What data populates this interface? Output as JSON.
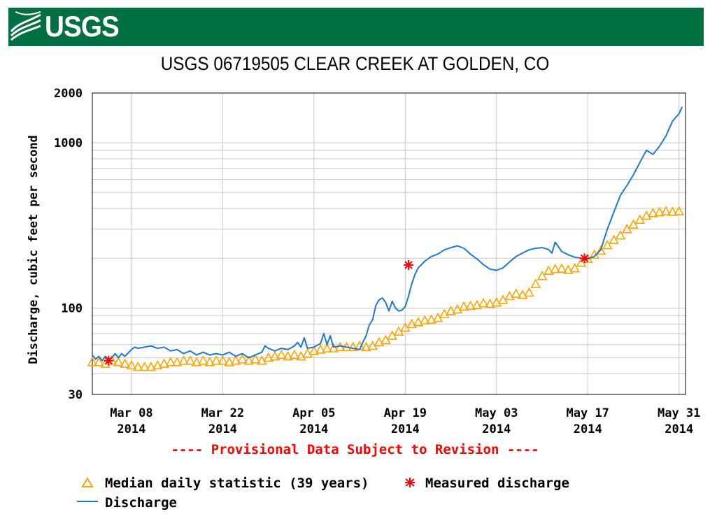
{
  "header": {
    "logo_text": "USGS",
    "logo_icon": "usgs-wave-logo-icon",
    "brand_color": "#006f41"
  },
  "chart_data": {
    "type": "line",
    "title": "USGS 06719505 CLEAR CREEK AT GOLDEN, CO",
    "xlabel": "",
    "ylabel": "Discharge, cubic feet per second",
    "y_scale": "log",
    "ylim": [
      30,
      2000
    ],
    "y_ticks": [
      "2000",
      "1000",
      "100",
      "30"
    ],
    "x_range": [
      "2014-03-02",
      "2014-05-31"
    ],
    "x_ticks": [
      {
        "day": 6,
        "line1": "Mar 08",
        "line2": "2014"
      },
      {
        "day": 20,
        "line1": "Mar 22",
        "line2": "2014"
      },
      {
        "day": 34,
        "line1": "Apr 05",
        "line2": "2014"
      },
      {
        "day": 48,
        "line1": "Apr 19",
        "line2": "2014"
      },
      {
        "day": 62,
        "line1": "May 03",
        "line2": "2014"
      },
      {
        "day": 76,
        "line1": "May 17",
        "line2": "2014"
      },
      {
        "day": 90,
        "line1": "May 31",
        "line2": "2014"
      }
    ],
    "note": "---- Provisional Data Subject to Revision ----",
    "colors": {
      "discharge": "#1f78d1",
      "median": "#ffa500",
      "measured": "#ff0000",
      "grid": "#c8c8c8"
    },
    "series": [
      {
        "name": "Discharge",
        "style": "line",
        "points": [
          [
            0,
            52
          ],
          [
            0.5,
            49
          ],
          [
            1,
            51
          ],
          [
            1.5,
            48
          ],
          [
            2,
            51
          ],
          [
            2.5,
            49
          ],
          [
            3,
            50
          ],
          [
            3.5,
            53
          ],
          [
            4,
            50
          ],
          [
            4.5,
            53
          ],
          [
            5,
            51
          ],
          [
            6,
            56
          ],
          [
            6.5,
            58
          ],
          [
            7,
            57
          ],
          [
            8,
            58
          ],
          [
            9,
            59
          ],
          [
            10,
            57
          ],
          [
            11,
            58
          ],
          [
            12,
            55
          ],
          [
            13,
            56
          ],
          [
            14,
            53
          ],
          [
            15,
            55
          ],
          [
            16,
            52
          ],
          [
            17,
            54
          ],
          [
            18,
            52
          ],
          [
            19,
            53
          ],
          [
            20,
            52
          ],
          [
            21,
            54
          ],
          [
            22,
            51
          ],
          [
            23,
            53
          ],
          [
            24,
            50
          ],
          [
            25,
            52
          ],
          [
            26,
            54
          ],
          [
            26.5,
            59
          ],
          [
            27,
            57
          ],
          [
            28,
            55
          ],
          [
            29,
            57
          ],
          [
            30,
            56
          ],
          [
            31,
            59
          ],
          [
            31.5,
            62
          ],
          [
            32,
            58
          ],
          [
            32.5,
            66
          ],
          [
            33,
            57
          ],
          [
            34,
            58
          ],
          [
            35,
            61
          ],
          [
            35.5,
            70
          ],
          [
            36,
            60
          ],
          [
            36.5,
            68
          ],
          [
            37,
            58
          ],
          [
            38,
            59
          ],
          [
            39,
            58
          ],
          [
            40,
            57
          ],
          [
            41,
            56
          ],
          [
            41.5,
            62
          ],
          [
            42,
            68
          ],
          [
            42.5,
            79
          ],
          [
            43,
            85
          ],
          [
            43.5,
            104
          ],
          [
            44,
            112
          ],
          [
            44.5,
            115
          ],
          [
            45,
            108
          ],
          [
            45.5,
            96
          ],
          [
            46,
            110
          ],
          [
            46.5,
            100
          ],
          [
            47,
            96
          ],
          [
            47.5,
            97
          ],
          [
            48,
            102
          ],
          [
            48.5,
            118
          ],
          [
            49,
            140
          ],
          [
            49.5,
            160
          ],
          [
            50,
            175
          ],
          [
            51,
            192
          ],
          [
            52,
            205
          ],
          [
            53,
            212
          ],
          [
            54,
            225
          ],
          [
            55,
            232
          ],
          [
            56,
            238
          ],
          [
            57,
            230
          ],
          [
            58,
            212
          ],
          [
            59,
            198
          ],
          [
            60,
            183
          ],
          [
            61,
            172
          ],
          [
            62,
            169
          ],
          [
            63,
            175
          ],
          [
            64,
            190
          ],
          [
            65,
            205
          ],
          [
            66,
            215
          ],
          [
            67,
            225
          ],
          [
            68,
            230
          ],
          [
            69,
            232
          ],
          [
            70,
            226
          ],
          [
            70.5,
            215
          ],
          [
            71,
            250
          ],
          [
            71.5,
            235
          ],
          [
            72,
            220
          ],
          [
            73,
            210
          ],
          [
            74,
            203
          ],
          [
            75,
            200
          ],
          [
            75.5,
            195
          ],
          [
            76,
            198
          ],
          [
            77,
            205
          ],
          [
            78,
            225
          ],
          [
            78.5,
            260
          ],
          [
            79,
            300
          ],
          [
            80,
            380
          ],
          [
            81,
            480
          ],
          [
            82,
            550
          ],
          [
            83,
            640
          ],
          [
            84,
            760
          ],
          [
            85,
            900
          ],
          [
            86,
            850
          ],
          [
            87,
            950
          ],
          [
            88,
            1100
          ],
          [
            89,
            1350
          ],
          [
            90,
            1500
          ],
          [
            90.5,
            1650
          ]
        ]
      },
      {
        "name": "Median daily statistic (39 years)",
        "style": "markers-triangle",
        "points": [
          [
            0,
            47
          ],
          [
            1,
            47
          ],
          [
            2,
            46
          ],
          [
            3,
            48
          ],
          [
            4,
            47
          ],
          [
            5,
            46
          ],
          [
            6,
            45
          ],
          [
            7,
            44
          ],
          [
            8,
            44
          ],
          [
            9,
            44
          ],
          [
            10,
            45
          ],
          [
            11,
            46
          ],
          [
            12,
            47
          ],
          [
            13,
            47
          ],
          [
            14,
            48
          ],
          [
            15,
            48
          ],
          [
            16,
            47
          ],
          [
            17,
            48
          ],
          [
            18,
            47
          ],
          [
            19,
            48
          ],
          [
            20,
            48
          ],
          [
            21,
            47
          ],
          [
            22,
            48
          ],
          [
            23,
            49
          ],
          [
            24,
            48
          ],
          [
            25,
            49
          ],
          [
            26,
            48
          ],
          [
            27,
            50
          ],
          [
            28,
            51
          ],
          [
            29,
            52
          ],
          [
            30,
            51
          ],
          [
            31,
            52
          ],
          [
            32,
            51
          ],
          [
            33,
            53
          ],
          [
            34,
            55
          ],
          [
            35,
            56
          ],
          [
            36,
            57
          ],
          [
            37,
            57
          ],
          [
            38,
            58
          ],
          [
            39,
            58
          ],
          [
            40,
            58
          ],
          [
            41,
            59
          ],
          [
            42,
            58
          ],
          [
            43,
            59
          ],
          [
            44,
            62
          ],
          [
            45,
            64
          ],
          [
            46,
            68
          ],
          [
            47,
            72
          ],
          [
            48,
            76
          ],
          [
            49,
            80
          ],
          [
            50,
            82
          ],
          [
            51,
            84
          ],
          [
            52,
            85
          ],
          [
            53,
            87
          ],
          [
            54,
            92
          ],
          [
            55,
            96
          ],
          [
            56,
            98
          ],
          [
            57,
            102
          ],
          [
            58,
            103
          ],
          [
            59,
            104
          ],
          [
            60,
            107
          ],
          [
            61,
            106
          ],
          [
            62,
            108
          ],
          [
            63,
            112
          ],
          [
            64,
            118
          ],
          [
            65,
            122
          ],
          [
            66,
            120
          ],
          [
            67,
            124
          ],
          [
            68,
            140
          ],
          [
            69,
            156
          ],
          [
            70,
            168
          ],
          [
            71,
            172
          ],
          [
            72,
            173
          ],
          [
            73,
            170
          ],
          [
            74,
            174
          ],
          [
            75,
            188
          ],
          [
            76,
            198
          ],
          [
            77,
            210
          ],
          [
            78,
            222
          ],
          [
            79,
            240
          ],
          [
            80,
            258
          ],
          [
            81,
            275
          ],
          [
            82,
            300
          ],
          [
            83,
            320
          ],
          [
            84,
            342
          ],
          [
            85,
            362
          ],
          [
            86,
            375
          ],
          [
            87,
            380
          ],
          [
            88,
            385
          ],
          [
            89,
            382
          ],
          [
            90,
            385
          ]
        ]
      },
      {
        "name": "Measured discharge",
        "style": "markers-asterisk",
        "points": [
          [
            2.5,
            48
          ],
          [
            48.5,
            182
          ],
          [
            75.5,
            200
          ]
        ]
      }
    ],
    "legend": [
      {
        "symbol": "triangle",
        "label": "Median daily statistic (39 years)"
      },
      {
        "symbol": "asterisk",
        "label": "Measured discharge"
      },
      {
        "symbol": "line",
        "label": "Discharge"
      }
    ]
  }
}
